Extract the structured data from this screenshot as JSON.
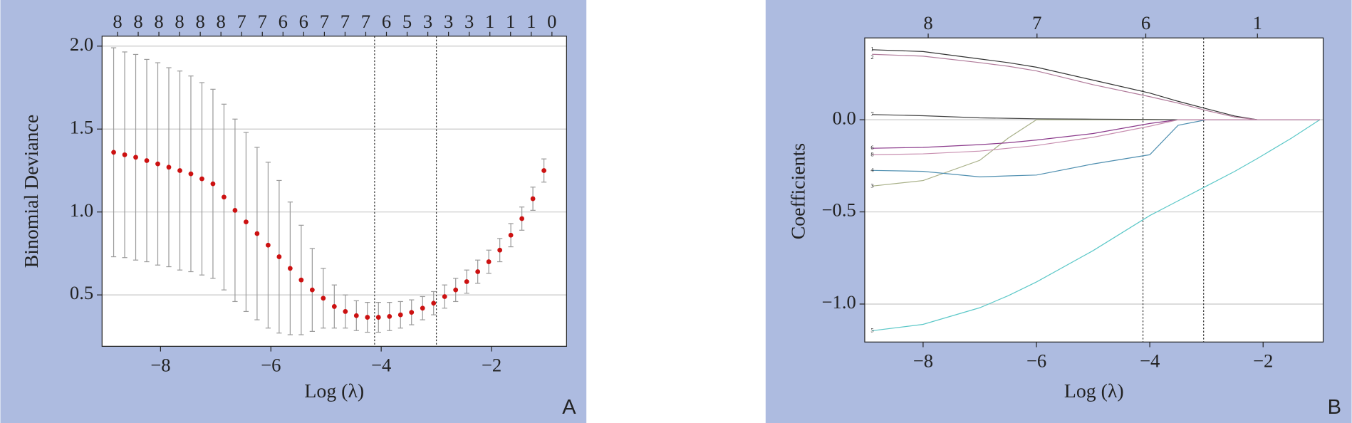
{
  "chart_data": [
    {
      "type": "errorbar",
      "panel_label": "A",
      "x_label": "Log (λ)",
      "y_label": "Binomial Deviance",
      "x": [
        -8.85,
        -8.65,
        -8.45,
        -8.25,
        -8.05,
        -7.85,
        -7.65,
        -7.45,
        -7.25,
        -7.05,
        -6.85,
        -6.65,
        -6.45,
        -6.25,
        -6.05,
        -5.85,
        -5.65,
        -5.45,
        -5.25,
        -5.05,
        -4.85,
        -4.65,
        -4.45,
        -4.25,
        -4.05,
        -3.85,
        -3.65,
        -3.45,
        -3.25,
        -3.05,
        -2.85,
        -2.65,
        -2.45,
        -2.25,
        -2.05,
        -1.85,
        -1.65,
        -1.45,
        -1.25,
        -1.05
      ],
      "values": [
        1.36,
        1.345,
        1.33,
        1.31,
        1.29,
        1.27,
        1.25,
        1.23,
        1.2,
        1.17,
        1.09,
        1.01,
        0.94,
        0.87,
        0.8,
        0.73,
        0.66,
        0.59,
        0.53,
        0.48,
        0.43,
        0.4,
        0.375,
        0.365,
        0.365,
        0.37,
        0.38,
        0.395,
        0.42,
        0.45,
        0.49,
        0.53,
        0.58,
        0.64,
        0.7,
        0.77,
        0.86,
        0.96,
        1.08,
        1.25
      ],
      "errors": [
        0.63,
        0.62,
        0.62,
        0.61,
        0.61,
        0.6,
        0.6,
        0.59,
        0.58,
        0.57,
        0.56,
        0.55,
        0.54,
        0.52,
        0.5,
        0.46,
        0.4,
        0.33,
        0.25,
        0.18,
        0.13,
        0.1,
        0.09,
        0.09,
        0.09,
        0.085,
        0.08,
        0.075,
        0.07,
        0.07,
        0.07,
        0.07,
        0.07,
        0.07,
        0.07,
        0.07,
        0.07,
        0.07,
        0.07,
        0.07
      ],
      "color": "#cc1111",
      "error_color": "#9a9a9a",
      "xlim": [
        -9.06,
        -0.64
      ],
      "xticks": [
        {
          "value": -8,
          "label": "−8"
        },
        {
          "value": -6,
          "label": "−6"
        },
        {
          "value": -4,
          "label": "−4"
        },
        {
          "value": -2,
          "label": "−2"
        }
      ],
      "ylim": [
        0.19,
        2.06
      ],
      "yticks": [
        0.5,
        {
          "value": 1,
          "label": "1.0"
        },
        1.5,
        {
          "value": 2,
          "label": "2.0"
        }
      ],
      "grid": true,
      "vlines": [
        -4.12,
        -3.0
      ],
      "top_x": [
        -8.78,
        -8.405,
        -8.03,
        -7.655,
        -7.28,
        -6.905,
        -6.53,
        -6.155,
        -5.78,
        -5.405,
        -5.03,
        -4.655,
        -4.28,
        -3.905,
        -3.53,
        -3.155,
        -2.78,
        -2.405,
        -2.03,
        -1.655,
        -1.28,
        -0.905
      ],
      "top_labels": [
        8,
        8,
        8,
        8,
        8,
        8,
        7,
        7,
        6,
        6,
        7,
        7,
        7,
        6,
        5,
        3,
        3,
        3,
        1,
        1,
        1,
        0
      ]
    },
    {
      "type": "line",
      "panel_label": "B",
      "x_label": "Log (λ)",
      "y_label": "Coefficients",
      "x": [
        -8.9,
        -8,
        -7,
        -6.5,
        -6,
        -5,
        -4,
        -3.5,
        -3,
        -2.5,
        -2.1,
        -1.5,
        -1.0
      ],
      "series": [
        {
          "name": "1",
          "color": "#333333",
          "values": [
            0.38,
            0.37,
            0.33,
            0.31,
            0.285,
            0.215,
            0.145,
            0.1,
            0.06,
            0.02,
            0,
            0,
            0
          ]
        },
        {
          "name": "2",
          "color": "#b07a9a",
          "values": [
            0.355,
            0.345,
            0.31,
            0.29,
            0.265,
            0.19,
            0.125,
            0.09,
            0.05,
            0.015,
            0,
            0,
            0
          ]
        },
        {
          "name": "3",
          "color": "#a8b088",
          "values": [
            -0.36,
            -0.33,
            -0.22,
            -0.1,
            0,
            0,
            0,
            0,
            0,
            0,
            0,
            0,
            0
          ]
        },
        {
          "name": "4",
          "color": "#4f8fb0",
          "values": [
            -0.275,
            -0.28,
            -0.31,
            -0.305,
            -0.3,
            -0.24,
            -0.19,
            -0.03,
            0,
            0,
            0,
            0,
            0
          ]
        },
        {
          "name": "5",
          "color": "#5cc8c8",
          "values": [
            -1.145,
            -1.11,
            -1.02,
            -0.955,
            -0.88,
            -0.71,
            -0.52,
            -0.44,
            -0.36,
            -0.28,
            -0.21,
            -0.1,
            0
          ]
        },
        {
          "name": "6",
          "color": "#8b3a8b",
          "values": [
            -0.155,
            -0.15,
            -0.135,
            -0.125,
            -0.11,
            -0.075,
            -0.02,
            0,
            0,
            0,
            0,
            0,
            0
          ]
        },
        {
          "name": "7",
          "color": "#444444",
          "values": [
            0.028,
            0.022,
            0.01,
            0.008,
            0.005,
            0.003,
            0.002,
            0,
            0,
            0,
            0,
            0,
            0
          ]
        },
        {
          "name": "8",
          "color": "#c88fb0",
          "values": [
            -0.19,
            -0.185,
            -0.17,
            -0.155,
            -0.14,
            -0.095,
            -0.035,
            0,
            0,
            0,
            0,
            0,
            0
          ]
        }
      ],
      "xlim": [
        -9.03,
        -0.94
      ],
      "xticks": [
        {
          "value": -8,
          "label": "−8"
        },
        {
          "value": -6,
          "label": "−6"
        },
        {
          "value": -4,
          "label": "−4"
        },
        {
          "value": -2,
          "label": "−2"
        }
      ],
      "ylim": [
        -1.206,
        0.444
      ],
      "yticks": [
        {
          "value": -1,
          "label": "−1.0"
        },
        {
          "value": -0.5,
          "label": "−0.5"
        },
        {
          "value": 0,
          "label": "0.0"
        }
      ],
      "grid": true,
      "vlines": [
        -4.12,
        -3.05
      ],
      "top_x": [
        -7.91,
        -5.99,
        -4.07,
        -2.1
      ],
      "top_labels": [
        8,
        7,
        6,
        1
      ]
    }
  ]
}
